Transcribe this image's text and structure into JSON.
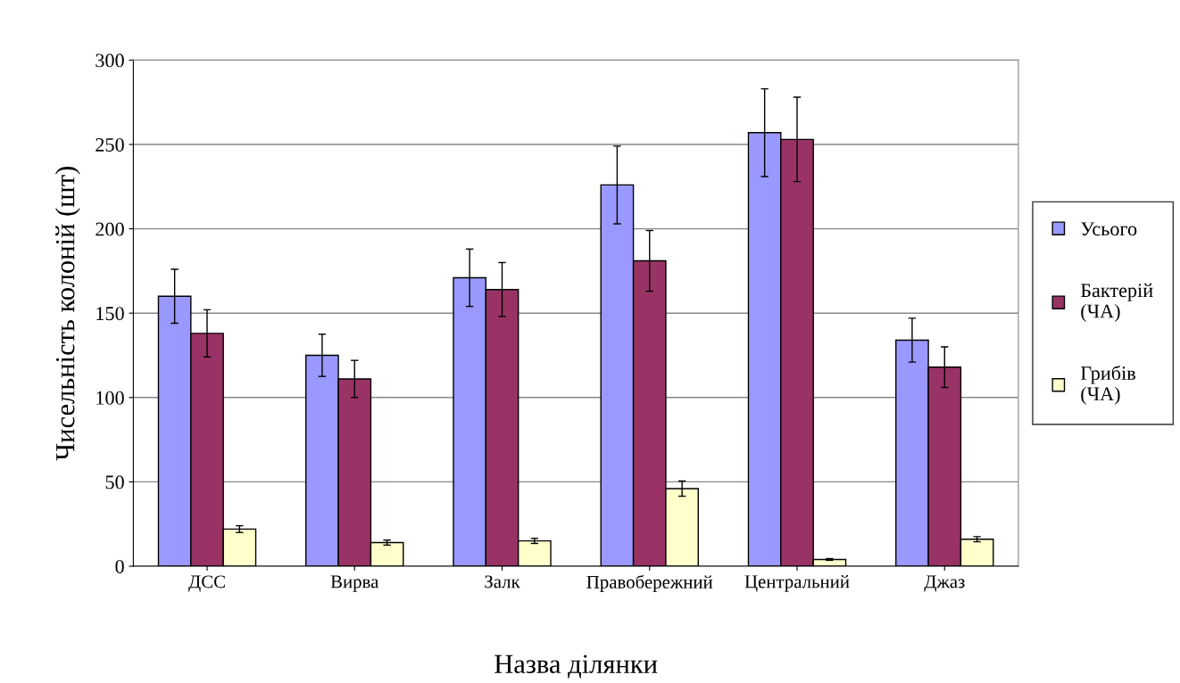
{
  "chart_data": {
    "type": "bar",
    "xlabel": "Назва ділянки",
    "ylabel": "Чисельність колоній (шт)",
    "categories": [
      "ДСС",
      "Вирва",
      "Залк",
      "Правобережний",
      "Центральний",
      "Джаз"
    ],
    "series": [
      {
        "name": "Усього",
        "color": "#9999ff",
        "values": [
          160,
          125,
          171,
          226,
          257,
          134
        ],
        "errors": [
          16,
          12.5,
          17,
          23,
          26,
          13
        ]
      },
      {
        "name": "Бактерій (ЧА)",
        "color": "#993366",
        "values": [
          138,
          111,
          164,
          181,
          253,
          118
        ],
        "errors": [
          14,
          11,
          16,
          18,
          25,
          12
        ]
      },
      {
        "name": "Грибів (ЧА)",
        "color": "#ffffcc",
        "values": [
          22,
          14,
          15,
          46,
          4,
          16
        ],
        "errors": [
          2,
          1.5,
          1.5,
          4.5,
          0.5,
          1.5
        ]
      }
    ],
    "ylim": [
      0,
      300
    ],
    "yticks": [
      0,
      50,
      100,
      150,
      200,
      250,
      300
    ],
    "grid": "y",
    "legend": "right"
  }
}
